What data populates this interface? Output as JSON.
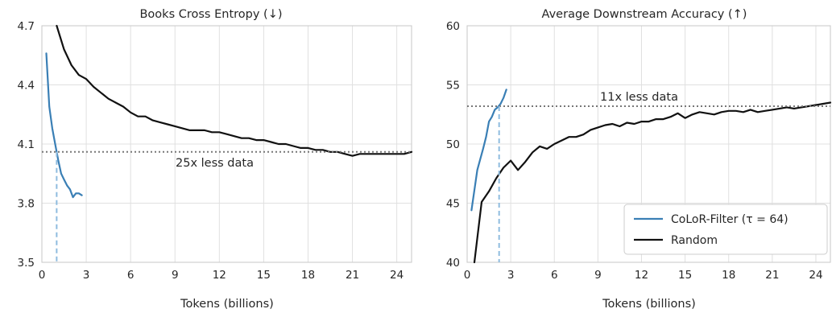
{
  "chart_data": [
    {
      "type": "line",
      "title": "Books Cross Entropy (↓)",
      "xlabel": "Tokens (billions)",
      "ylabel": "",
      "xlim": [
        0,
        25
      ],
      "ylim": [
        3.5,
        4.7
      ],
      "xticks": [
        0,
        3,
        6,
        9,
        12,
        15,
        18,
        21,
        24
      ],
      "yticks": [
        3.5,
        3.8,
        4.1,
        4.4,
        4.7
      ],
      "xtick_labels": [
        "0",
        "3",
        "6",
        "9",
        "12",
        "15",
        "18",
        "21",
        "24"
      ],
      "ytick_labels": [
        "3.5",
        "3.8",
        "4.1",
        "4.4",
        "4.7"
      ],
      "grid": true,
      "series": [
        {
          "name": "CoLoR-Filter (τ = 64)",
          "color": "#3a7fb5",
          "x": [
            0.3,
            0.5,
            0.7,
            0.9,
            1.1,
            1.3,
            1.5,
            1.7,
            1.9,
            2.1,
            2.3,
            2.5,
            2.7
          ],
          "y": [
            4.56,
            4.29,
            4.18,
            4.1,
            4.02,
            3.95,
            3.92,
            3.89,
            3.87,
            3.83,
            3.85,
            3.85,
            3.84
          ]
        },
        {
          "name": "Random",
          "color": "#111111",
          "x": [
            1.0,
            1.5,
            2.0,
            2.5,
            3.0,
            3.5,
            4.0,
            4.5,
            5.0,
            5.5,
            6.0,
            6.5,
            7.0,
            7.5,
            8.0,
            8.5,
            9.0,
            9.5,
            10.0,
            10.5,
            11.0,
            11.5,
            12.0,
            12.5,
            13.0,
            13.5,
            14.0,
            14.5,
            15.0,
            15.5,
            16.0,
            16.5,
            17.0,
            17.5,
            18.0,
            18.5,
            19.0,
            19.5,
            20.0,
            20.5,
            21.0,
            21.5,
            22.0,
            22.5,
            23.0,
            23.5,
            24.0,
            24.5,
            25.0
          ],
          "y": [
            4.7,
            4.58,
            4.5,
            4.45,
            4.43,
            4.39,
            4.36,
            4.33,
            4.31,
            4.29,
            4.26,
            4.24,
            4.24,
            4.22,
            4.21,
            4.2,
            4.19,
            4.18,
            4.17,
            4.17,
            4.17,
            4.16,
            4.16,
            4.15,
            4.14,
            4.13,
            4.13,
            4.12,
            4.12,
            4.11,
            4.1,
            4.1,
            4.09,
            4.08,
            4.08,
            4.07,
            4.07,
            4.06,
            4.06,
            4.05,
            4.04,
            4.05,
            4.05,
            4.05,
            4.05,
            4.05,
            4.05,
            4.05,
            4.06
          ]
        }
      ],
      "reference_line": {
        "y": 4.06,
        "x_marker": 1.0
      },
      "annotation": "25x less data"
    },
    {
      "type": "line",
      "title": "Average Downstream Accuracy (↑)",
      "xlabel": "Tokens (billions)",
      "ylabel": "",
      "xlim": [
        0,
        25
      ],
      "ylim": [
        40,
        60
      ],
      "xticks": [
        0,
        3,
        6,
        9,
        12,
        15,
        18,
        21,
        24
      ],
      "yticks": [
        40,
        45,
        50,
        55,
        60
      ],
      "xtick_labels": [
        "0",
        "3",
        "6",
        "9",
        "12",
        "15",
        "18",
        "21",
        "24"
      ],
      "ytick_labels": [
        "40",
        "45",
        "50",
        "55",
        "60"
      ],
      "grid": true,
      "legend": "lower-right",
      "series": [
        {
          "name": "CoLoR-Filter (τ = 64)",
          "color": "#3a7fb5",
          "x": [
            0.3,
            0.5,
            0.7,
            0.9,
            1.1,
            1.3,
            1.5,
            1.7,
            1.9,
            2.1,
            2.3,
            2.5,
            2.7
          ],
          "y": [
            44.4,
            46.1,
            47.8,
            48.7,
            49.6,
            50.6,
            51.9,
            52.3,
            52.9,
            53.1,
            53.4,
            53.9,
            54.6
          ]
        },
        {
          "name": "Random",
          "color": "#111111",
          "x": [
            0.5,
            1.0,
            1.5,
            2.0,
            2.5,
            3.0,
            3.5,
            4.0,
            4.5,
            5.0,
            5.5,
            6.0,
            6.5,
            7.0,
            7.5,
            8.0,
            8.5,
            9.0,
            9.5,
            10.0,
            10.5,
            11.0,
            11.5,
            12.0,
            12.5,
            13.0,
            13.5,
            14.0,
            14.5,
            15.0,
            15.5,
            16.0,
            16.5,
            17.0,
            17.5,
            18.0,
            18.5,
            19.0,
            19.5,
            20.0,
            20.5,
            21.0,
            21.5,
            22.0,
            22.5,
            23.0,
            23.5,
            24.0,
            24.5,
            25.0
          ],
          "y": [
            40.0,
            45.1,
            46.0,
            47.1,
            48.0,
            48.6,
            47.8,
            48.5,
            49.3,
            49.8,
            49.6,
            50.0,
            50.3,
            50.6,
            50.6,
            50.8,
            51.2,
            51.4,
            51.6,
            51.7,
            51.5,
            51.8,
            51.7,
            51.9,
            51.9,
            52.1,
            52.1,
            52.3,
            52.6,
            52.2,
            52.5,
            52.7,
            52.6,
            52.5,
            52.7,
            52.8,
            52.8,
            52.7,
            52.9,
            52.7,
            52.8,
            52.9,
            53.0,
            53.1,
            53.0,
            53.1,
            53.2,
            53.3,
            53.4,
            53.5
          ]
        }
      ],
      "reference_line": {
        "y": 53.2,
        "x_marker": 2.2
      },
      "annotation": "11x less data"
    }
  ]
}
